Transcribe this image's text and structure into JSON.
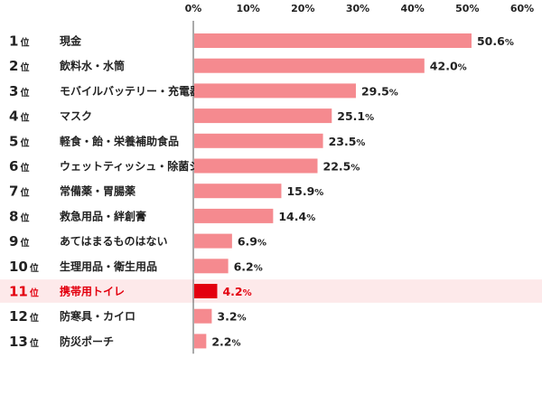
{
  "chart_data": {
    "type": "bar",
    "orientation": "horizontal",
    "xlim": [
      0,
      60
    ],
    "x_ticks": [
      "0%",
      "10%",
      "20%",
      "30%",
      "40%",
      "50%",
      "60%"
    ],
    "rank_suffix": "位",
    "value_suffix": "%",
    "items": [
      {
        "rank": "1",
        "label": "現金",
        "value": 50.6,
        "value_text": "50.6"
      },
      {
        "rank": "2",
        "label": "飲料水・水筒",
        "value": 42.0,
        "value_text": "42.0"
      },
      {
        "rank": "3",
        "label": "モバイルバッテリー・充電器",
        "value": 29.5,
        "value_text": "29.5"
      },
      {
        "rank": "4",
        "label": "マスク",
        "value": 25.1,
        "value_text": "25.1"
      },
      {
        "rank": "5",
        "label": "軽食・飴・栄養補助食品",
        "value": 23.5,
        "value_text": "23.5"
      },
      {
        "rank": "6",
        "label": "ウェットティッシュ・除菌シート",
        "value": 22.5,
        "value_text": "22.5"
      },
      {
        "rank": "7",
        "label": "常備薬・胃腸薬",
        "value": 15.9,
        "value_text": "15.9"
      },
      {
        "rank": "8",
        "label": "救急用品・絆創膏",
        "value": 14.4,
        "value_text": "14.4"
      },
      {
        "rank": "9",
        "label": "あてはまるものはない",
        "value": 6.9,
        "value_text": "6.9"
      },
      {
        "rank": "10",
        "label": "生理用品・衛生用品",
        "value": 6.2,
        "value_text": "6.2"
      },
      {
        "rank": "11",
        "label": "携帯用トイレ",
        "value": 4.2,
        "value_text": "4.2",
        "highlight": true
      },
      {
        "rank": "12",
        "label": "防寒具・カイロ",
        "value": 3.2,
        "value_text": "3.2"
      },
      {
        "rank": "13",
        "label": "防災ポーチ",
        "value": 2.2,
        "value_text": "2.2"
      }
    ],
    "colors": {
      "bar": "#f58a8f",
      "bar_highlight": "#e3000f",
      "highlight_row_bg": "#fde9ea",
      "text": "#222222",
      "text_highlight": "#e3000f",
      "axis": "#555555"
    },
    "grid": false
  }
}
